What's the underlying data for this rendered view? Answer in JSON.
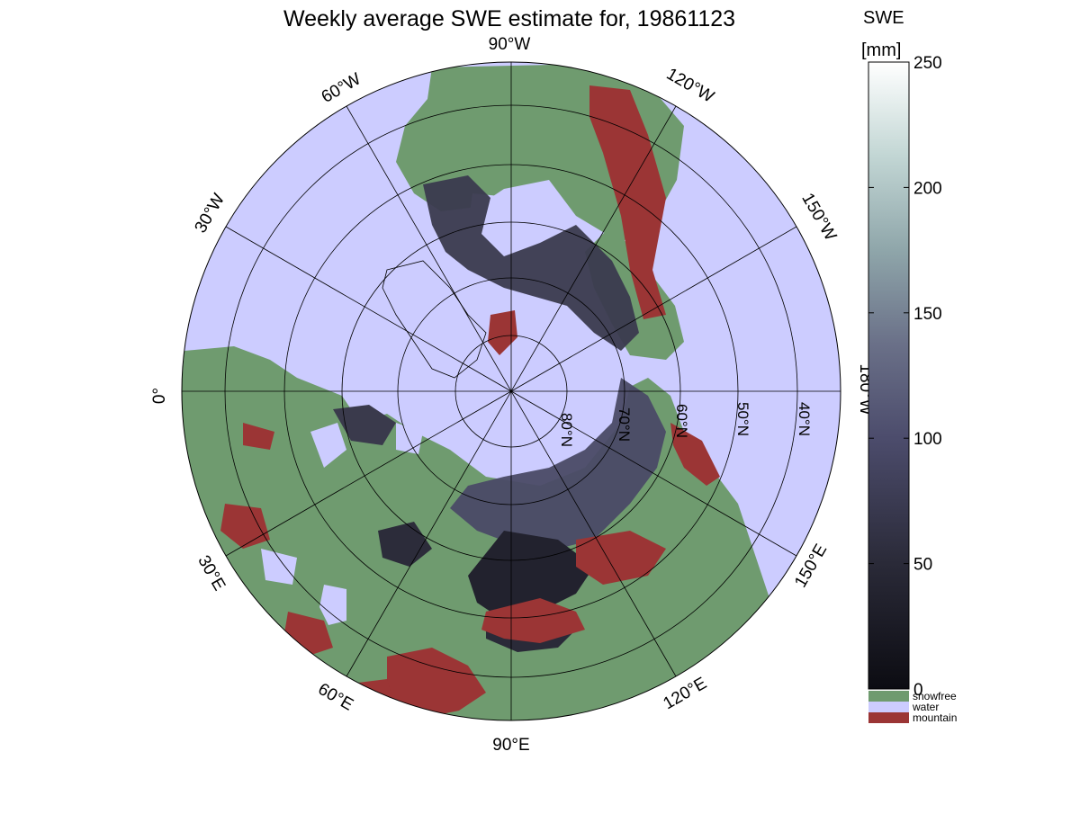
{
  "title": "Weekly average SWE estimate for, 19861123",
  "colors": {
    "water": "#ccccff",
    "snowfree": "#6f9b6f",
    "mountain": "#9b3535",
    "snow_low": "#0c0c12",
    "snow_mid": "#4c4c6c",
    "snow_high": "#ffffff"
  },
  "map": {
    "projection": "north-polar stereographic",
    "longitude_labels": [
      "90°W",
      "60°W",
      "30°W",
      "0°",
      "30°E",
      "60°E",
      "90°E",
      "120°E",
      "150°E",
      "180°W",
      "150°W",
      "120°W"
    ],
    "latitude_labels": [
      "80°N",
      "70°N",
      "60°N",
      "50°N",
      "40°N"
    ]
  },
  "colorbar": {
    "title": "SWE",
    "unit": "[mm]",
    "range": [
      0,
      250
    ],
    "ticks": [
      0,
      50,
      100,
      150,
      200,
      250
    ],
    "categories": [
      {
        "label": "snowfree",
        "color": "#6f9b6f"
      },
      {
        "label": "water",
        "color": "#ccccff"
      },
      {
        "label": "mountain",
        "color": "#9b3535"
      }
    ]
  }
}
